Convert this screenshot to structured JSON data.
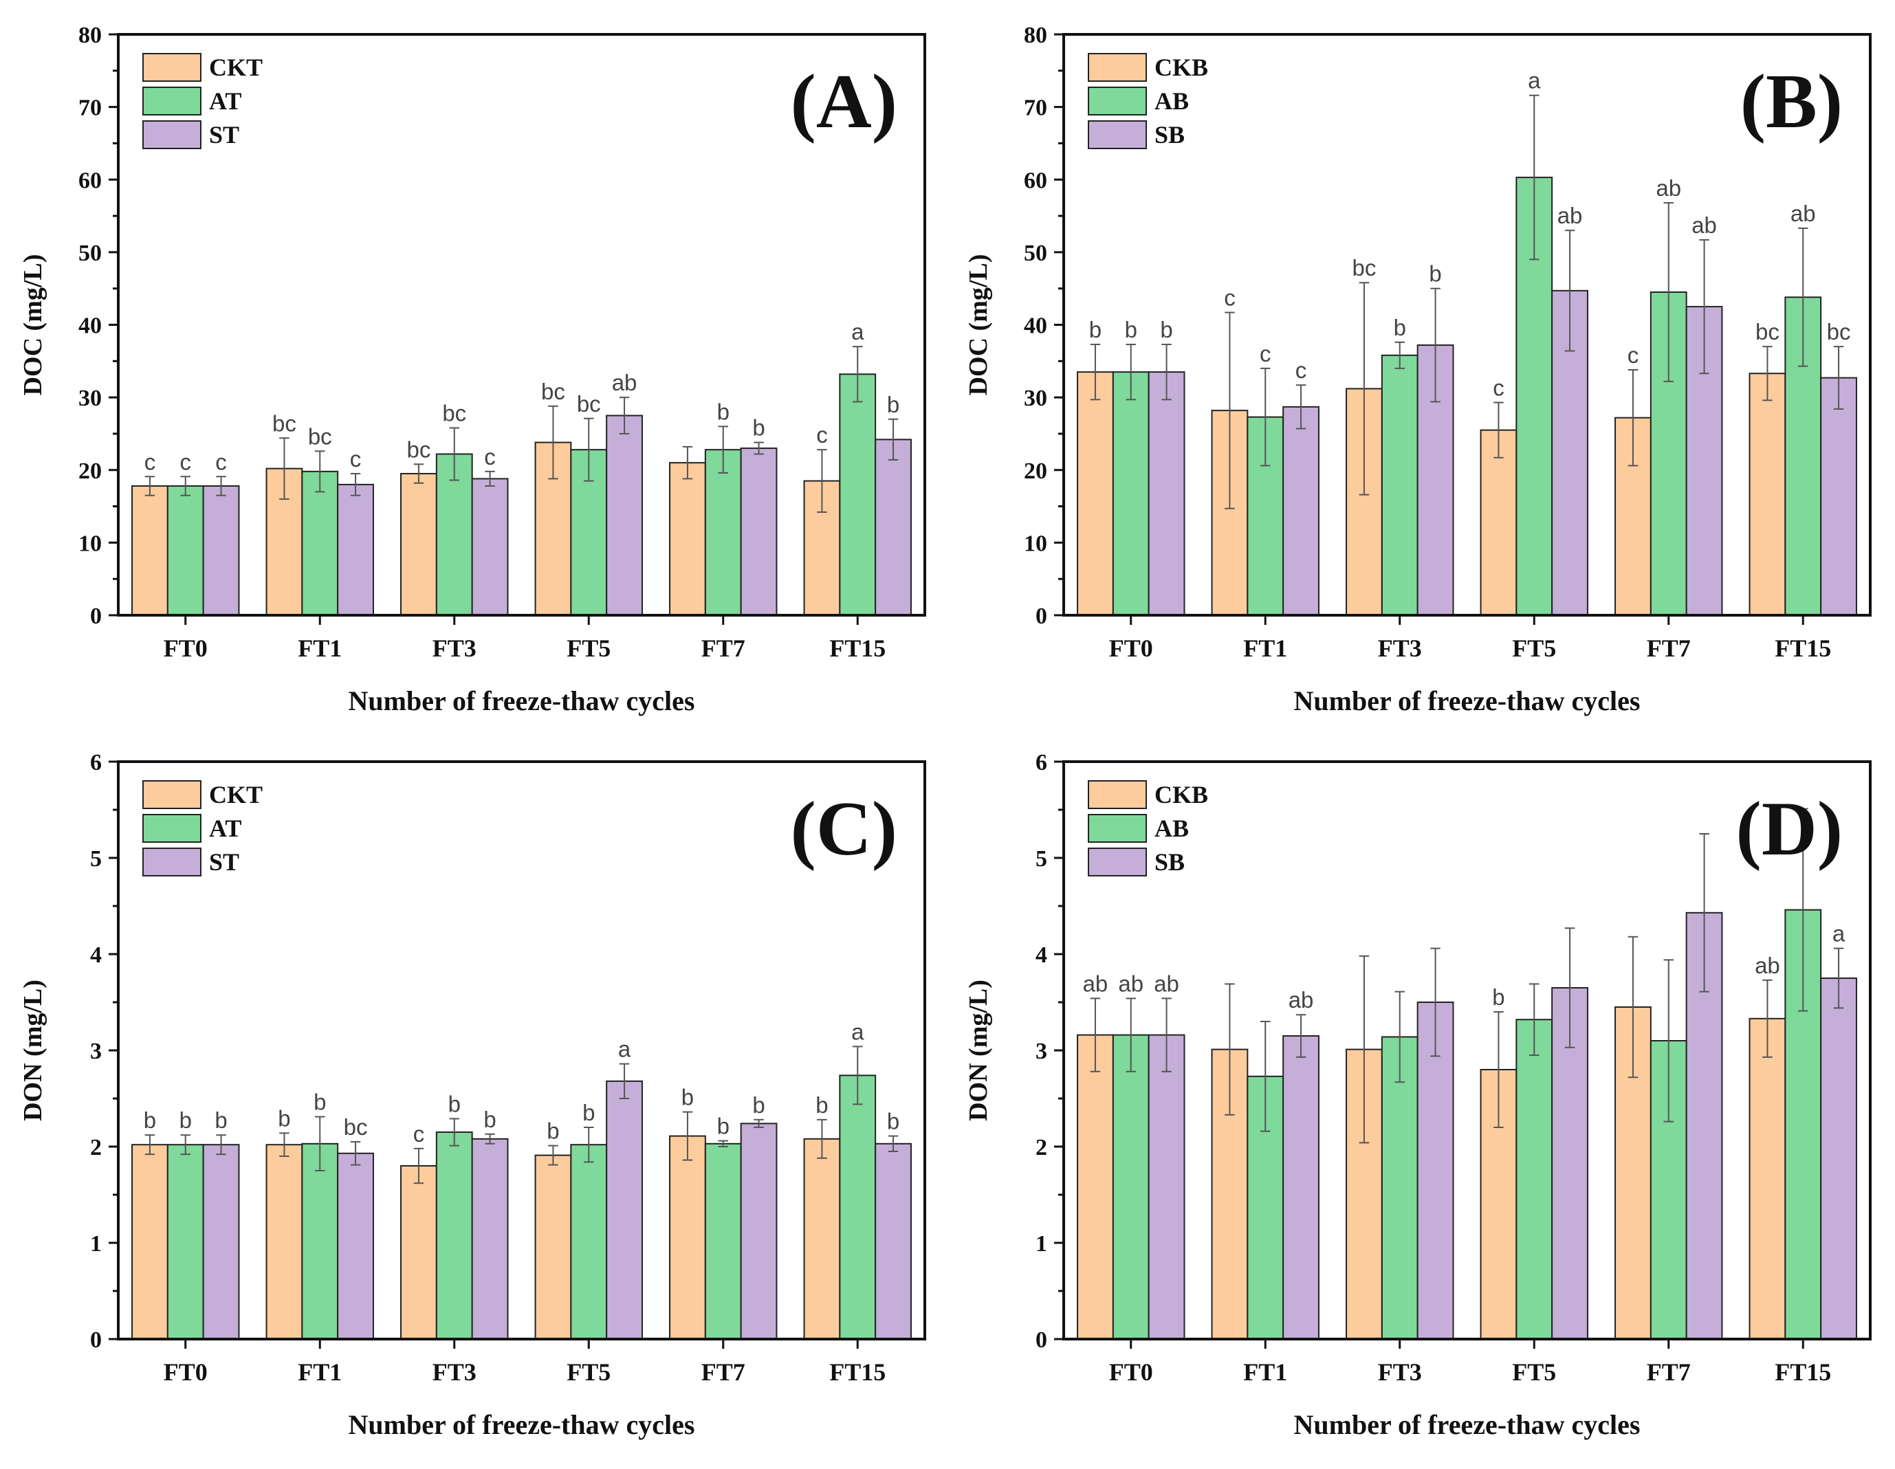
{
  "colors": {
    "series": [
      "#FDCC9C",
      "#7FD99A",
      "#C5AFD8"
    ],
    "bar_stroke": "#222222",
    "error_bar": "#555555",
    "axis": "#111111"
  },
  "chart_data": [
    {
      "id": "A",
      "type": "bar",
      "panel_label": "(A)",
      "xlabel": "Number of freeze-thaw cycles",
      "ylabel": "DOC (mg/L)",
      "ylim": [
        0,
        80
      ],
      "yticks": [
        "0",
        "10",
        "20",
        "30",
        "40",
        "50",
        "60",
        "70",
        "80"
      ],
      "ytick_values": [
        0,
        10,
        20,
        30,
        40,
        50,
        60,
        70,
        80
      ],
      "categories": [
        "FT0",
        "FT1",
        "FT3",
        "FT5",
        "FT7",
        "FT15"
      ],
      "legend": "top-left",
      "series": [
        {
          "name": "CKT",
          "values": [
            17.8,
            20.2,
            19.5,
            23.8,
            21.0,
            18.5
          ],
          "errors": [
            1.3,
            4.2,
            1.3,
            5.0,
            2.2,
            4.3
          ],
          "letters": [
            "c",
            "bc",
            "bc",
            "bc",
            "",
            "c"
          ]
        },
        {
          "name": "AT",
          "values": [
            17.8,
            19.8,
            22.2,
            22.8,
            22.8,
            33.2
          ],
          "errors": [
            1.3,
            2.8,
            3.6,
            4.3,
            3.2,
            3.8
          ],
          "letters": [
            "c",
            "bc",
            "bc",
            "bc",
            "b",
            "a"
          ]
        },
        {
          "name": "ST",
          "values": [
            17.8,
            18.0,
            18.8,
            27.5,
            23.0,
            24.2
          ],
          "errors": [
            1.3,
            1.5,
            1.0,
            2.5,
            0.8,
            2.8
          ],
          "letters": [
            "c",
            "c",
            "c",
            "ab",
            "b",
            "b"
          ]
        }
      ]
    },
    {
      "id": "B",
      "type": "bar",
      "panel_label": "(B)",
      "xlabel": "Number of freeze-thaw cycles",
      "ylabel": "DOC (mg/L)",
      "ylim": [
        0,
        80
      ],
      "yticks": [
        "0",
        "10",
        "20",
        "30",
        "40",
        "50",
        "60",
        "70",
        "80"
      ],
      "ytick_values": [
        0,
        10,
        20,
        30,
        40,
        50,
        60,
        70,
        80
      ],
      "categories": [
        "FT0",
        "FT1",
        "FT3",
        "FT5",
        "FT7",
        "FT15"
      ],
      "legend": "top-left",
      "series": [
        {
          "name": "CKB",
          "values": [
            33.5,
            28.2,
            31.2,
            25.5,
            27.2,
            33.3
          ],
          "errors": [
            3.8,
            13.5,
            14.6,
            3.8,
            6.6,
            3.7
          ],
          "letters": [
            "b",
            "c",
            "bc",
            "c",
            "c",
            "bc"
          ]
        },
        {
          "name": "AB",
          "values": [
            33.5,
            27.3,
            35.8,
            60.3,
            44.5,
            43.8
          ],
          "errors": [
            3.8,
            6.7,
            1.8,
            11.3,
            12.3,
            9.5
          ],
          "letters": [
            "b",
            "c",
            "b",
            "a",
            "ab",
            "ab"
          ]
        },
        {
          "name": "SB",
          "values": [
            33.5,
            28.7,
            37.2,
            44.7,
            42.5,
            32.7
          ],
          "errors": [
            3.8,
            3.0,
            7.8,
            8.3,
            9.2,
            4.3
          ],
          "letters": [
            "b",
            "c",
            "b",
            "ab",
            "ab",
            "bc"
          ]
        }
      ]
    },
    {
      "id": "C",
      "type": "bar",
      "panel_label": "(C)",
      "xlabel": "Number of freeze-thaw cycles",
      "ylabel": "DON (mg/L)",
      "ylim": [
        0,
        6
      ],
      "yticks": [
        "0",
        "1",
        "2",
        "3",
        "4",
        "5",
        "6"
      ],
      "ytick_values": [
        0,
        1,
        2,
        3,
        4,
        5,
        6
      ],
      "categories": [
        "FT0",
        "FT1",
        "FT3",
        "FT5",
        "FT7",
        "FT15"
      ],
      "legend": "top-left",
      "series": [
        {
          "name": "CKT",
          "values": [
            2.02,
            2.02,
            1.8,
            1.91,
            2.11,
            2.08
          ],
          "errors": [
            0.1,
            0.12,
            0.18,
            0.1,
            0.25,
            0.2
          ],
          "letters": [
            "b",
            "b",
            "c",
            "b",
            "b",
            "b"
          ]
        },
        {
          "name": "AT",
          "values": [
            2.02,
            2.03,
            2.15,
            2.02,
            2.03,
            2.74
          ],
          "errors": [
            0.1,
            0.28,
            0.14,
            0.18,
            0.03,
            0.3
          ],
          "letters": [
            "b",
            "b",
            "b",
            "b",
            "b",
            "a"
          ]
        },
        {
          "name": "ST",
          "values": [
            2.02,
            1.93,
            2.08,
            2.68,
            2.24,
            2.03
          ],
          "errors": [
            0.1,
            0.12,
            0.05,
            0.18,
            0.04,
            0.08
          ],
          "letters": [
            "b",
            "bc",
            "b",
            "a",
            "b",
            "b"
          ]
        }
      ]
    },
    {
      "id": "D",
      "type": "bar",
      "panel_label": "(D)",
      "xlabel": "Number of freeze-thaw cycles",
      "ylabel": "DON (mg/L)",
      "ylim": [
        0,
        6
      ],
      "yticks": [
        "0",
        "1",
        "2",
        "3",
        "4",
        "5",
        "6"
      ],
      "ytick_values": [
        0,
        1,
        2,
        3,
        4,
        5,
        6
      ],
      "categories": [
        "FT0",
        "FT1",
        "FT3",
        "FT5",
        "FT7",
        "FT15"
      ],
      "legend": "top-left",
      "series": [
        {
          "name": "CKB",
          "values": [
            3.16,
            3.01,
            3.01,
            2.8,
            3.45,
            3.33
          ],
          "errors": [
            0.38,
            0.68,
            0.97,
            0.6,
            0.73,
            0.4
          ],
          "letters": [
            "ab",
            "",
            "",
            "b",
            "",
            "ab"
          ]
        },
        {
          "name": "AB",
          "values": [
            3.16,
            2.73,
            3.14,
            3.32,
            3.1,
            4.46
          ],
          "errors": [
            0.38,
            0.57,
            0.47,
            0.37,
            0.84,
            1.05
          ],
          "letters": [
            "ab",
            "",
            "",
            "",
            "",
            ""
          ]
        },
        {
          "name": "SB",
          "values": [
            3.16,
            3.15,
            3.5,
            3.65,
            4.43,
            3.75
          ],
          "errors": [
            0.38,
            0.22,
            0.56,
            0.62,
            0.82,
            0.31
          ],
          "letters": [
            "ab",
            "ab",
            "",
            "",
            "",
            "a"
          ]
        }
      ]
    }
  ]
}
